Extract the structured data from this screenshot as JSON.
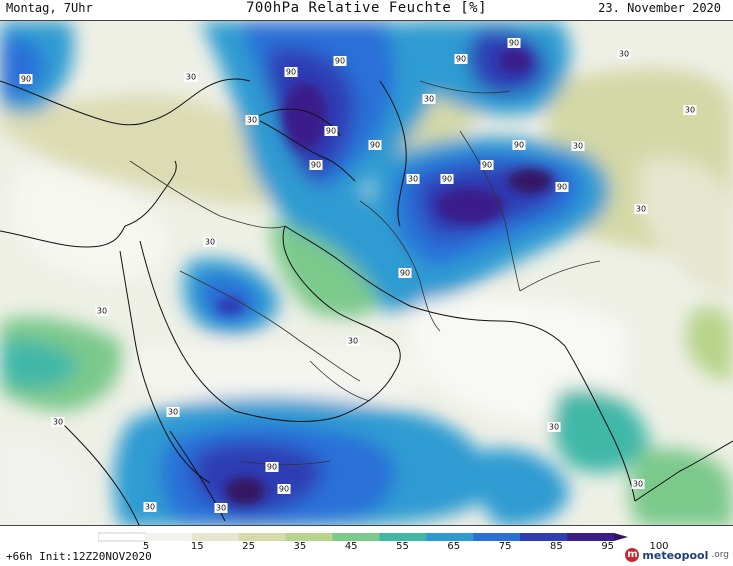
{
  "header": {
    "left": "Montag, 7Uhr",
    "title": "700hPa Relative Feuchte [%]",
    "right": "23. November 2020"
  },
  "footer": {
    "left": "+66h Init:12Z20NOV2020",
    "logo_mark": "m",
    "logo_text": "meteopool",
    "logo_tld": ".org"
  },
  "colors": {
    "ocean": "#b9ccd8",
    "coast": "#111111",
    "contour_label_bg": "#ffffff"
  },
  "legend": {
    "unit": "%",
    "ticks": [
      "5",
      "15",
      "25",
      "35",
      "45",
      "55",
      "65",
      "75",
      "85",
      "95",
      "100"
    ],
    "colors": [
      "#ffffff",
      "#f2f2ee",
      "#e6e6cf",
      "#d6d9a8",
      "#b8d48b",
      "#7cc98c",
      "#3fb8a8",
      "#2d9bd2",
      "#2a6fd8",
      "#2f3cb4",
      "#3a1f8a",
      "#341463"
    ]
  },
  "contour_labels": [
    {
      "text": "90"
    },
    {
      "text": "90"
    },
    {
      "text": "90"
    },
    {
      "text": "90"
    },
    {
      "text": "90"
    },
    {
      "text": "90"
    },
    {
      "text": "90"
    },
    {
      "text": "90"
    },
    {
      "text": "90"
    },
    {
      "text": "90"
    },
    {
      "text": "90"
    },
    {
      "text": "90"
    },
    {
      "text": "90"
    },
    {
      "text": "90"
    },
    {
      "text": "90"
    },
    {
      "text": "30"
    },
    {
      "text": "30"
    },
    {
      "text": "30"
    },
    {
      "text": "30"
    },
    {
      "text": "30"
    },
    {
      "text": "30"
    },
    {
      "text": "30"
    },
    {
      "text": "30"
    },
    {
      "text": "30"
    },
    {
      "text": "30"
    },
    {
      "text": "30"
    },
    {
      "text": "30"
    },
    {
      "text": "30"
    },
    {
      "text": "30"
    },
    {
      "text": "30"
    },
    {
      "text": "30"
    },
    {
      "text": "30"
    }
  ]
}
